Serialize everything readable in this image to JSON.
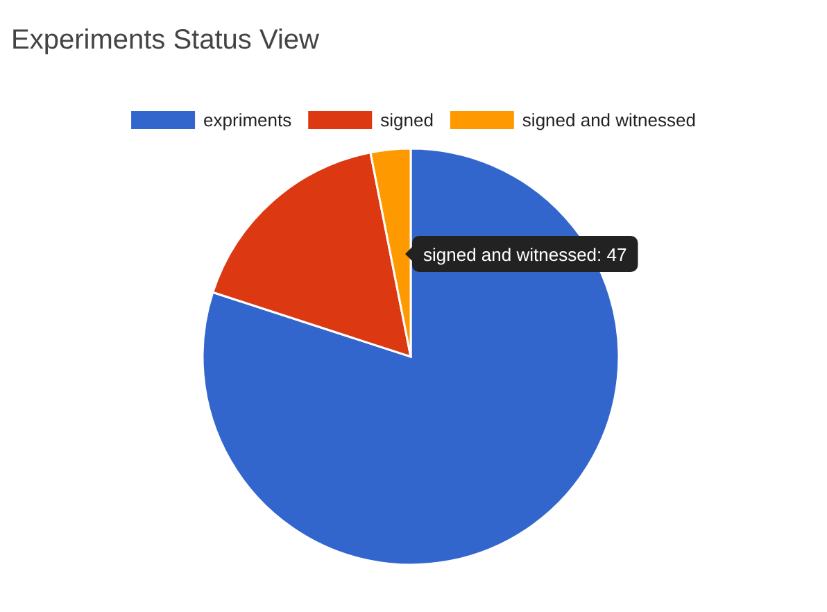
{
  "chart_data": {
    "type": "pie",
    "title": "Experiments Status View",
    "categories": [
      "expriments",
      "signed",
      "signed and witnessed"
    ],
    "values": [
      80,
      16.9,
      3.1
    ],
    "colors": [
      "#3366cc",
      "#dc3912",
      "#ff9900"
    ],
    "legend": "top",
    "annotations": [
      "signed and witnessed: 47"
    ]
  }
}
